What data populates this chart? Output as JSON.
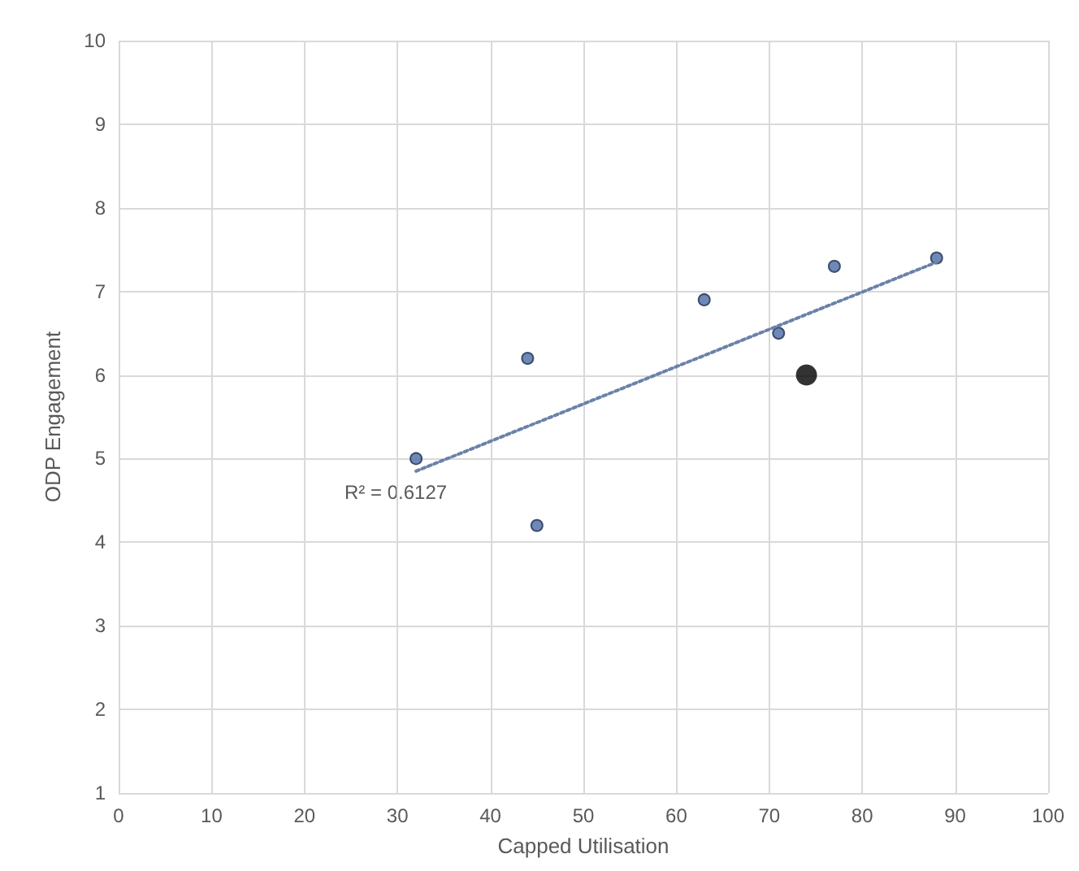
{
  "chart_data": {
    "type": "scatter",
    "xlabel": "Capped Utilisation",
    "ylabel": "ODP Engagement",
    "xlim": [
      0,
      100
    ],
    "xticks": [
      0,
      10,
      20,
      30,
      40,
      50,
      60,
      70,
      80,
      90,
      100
    ],
    "ylim": [
      1,
      10
    ],
    "yticks": [
      1,
      2,
      3,
      4,
      5,
      6,
      7,
      8,
      9,
      10
    ],
    "grid": true,
    "marker": "circle",
    "annotations": [
      "R² = 0.6127"
    ],
    "series": [
      {
        "color": "#4a6aa5",
        "x": [
          32,
          44,
          45,
          63,
          71,
          77,
          88
        ],
        "values": [
          5.0,
          6.2,
          4.2,
          6.9,
          6.5,
          7.3,
          7.4
        ]
      },
      {
        "color": "#000000",
        "x": [
          74
        ],
        "values": [
          6.0
        ]
      },
      {
        "type": "line",
        "color": "#6b82a8",
        "line_style": "dotted",
        "marker": "none",
        "x": [
          32,
          88
        ],
        "values": [
          4.85,
          7.35
        ]
      }
    ]
  }
}
